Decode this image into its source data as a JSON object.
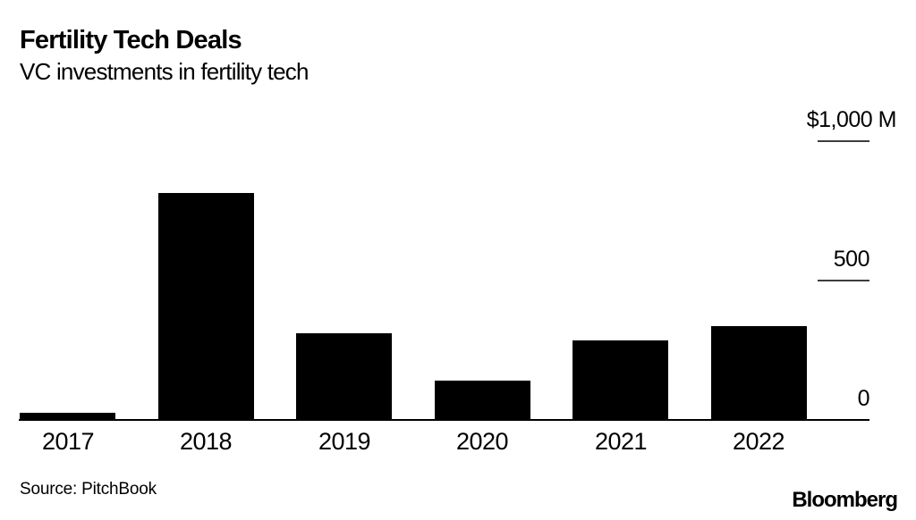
{
  "header": {
    "title": "Fertility Tech Deals",
    "subtitle": "VC investments in fertility tech"
  },
  "chart_data": {
    "type": "bar",
    "title": "Fertility Tech Deals",
    "subtitle": "VC investments in fertility tech",
    "categories": [
      "2017",
      "2018",
      "2019",
      "2020",
      "2021",
      "2022"
    ],
    "values": [
      25,
      815,
      310,
      140,
      285,
      335
    ],
    "unit": "$M",
    "xlabel": "",
    "ylabel": "",
    "ylim": [
      0,
      1000
    ],
    "yticks": [
      {
        "value": 1000,
        "label": "$1,000 M",
        "has_tick_line": true
      },
      {
        "value": 500,
        "label": "500",
        "has_tick_line": true
      },
      {
        "value": 0,
        "label": "0",
        "has_tick_line": false
      }
    ],
    "legend": null,
    "grid": false,
    "tick_side": "right",
    "bar_color": "#000000"
  },
  "footer": {
    "source": "Source: PitchBook",
    "brand": "Bloomberg"
  },
  "colors": {
    "background": "#ffffff",
    "bar": "#000000",
    "text": "#000000",
    "tick_line": "#3d3d3d",
    "axis_line": "#000000"
  }
}
